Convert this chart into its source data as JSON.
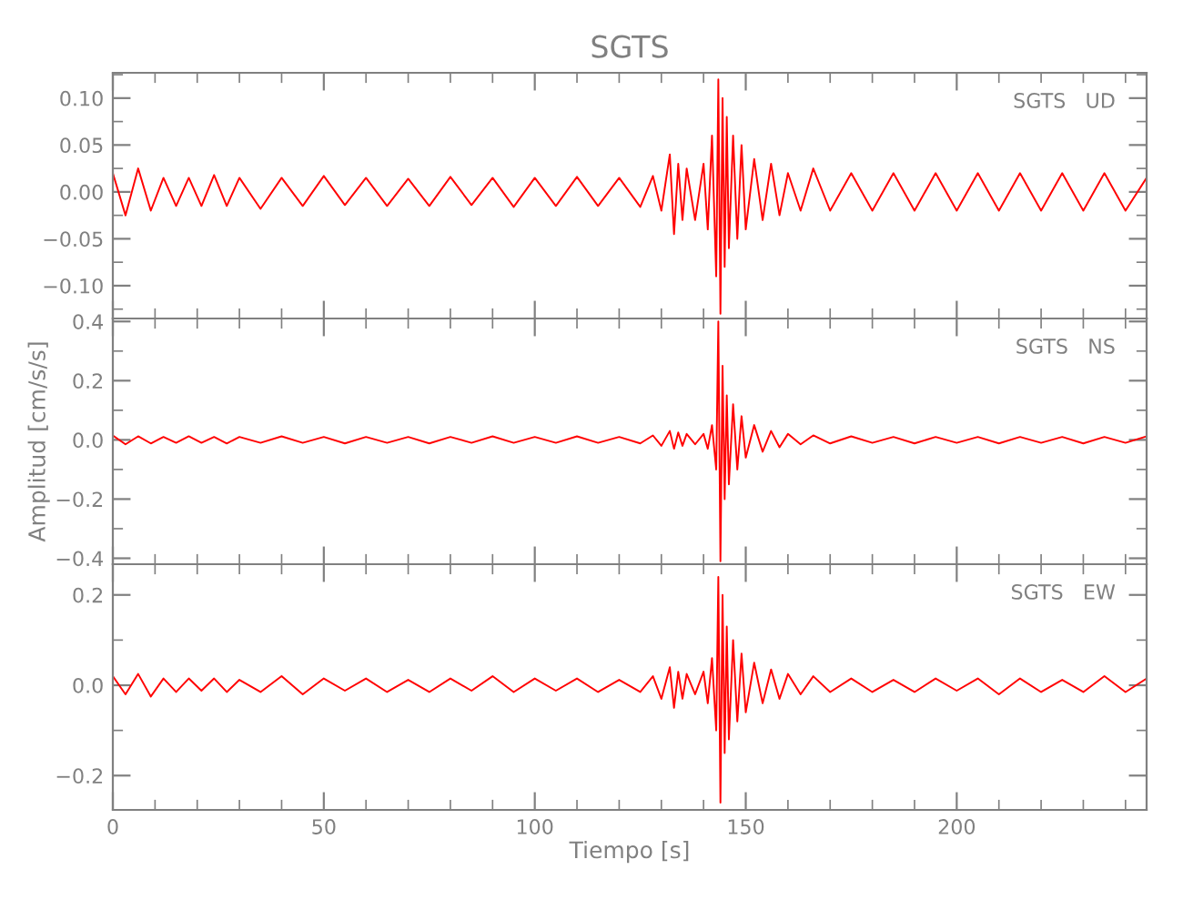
{
  "chart_data": [
    {
      "type": "line",
      "title": "SGTS",
      "annotations": [
        "SGTS   UD"
      ],
      "tick_labels": "y",
      "grid": false,
      "legend": false,
      "x": [
        0,
        3,
        6,
        9,
        12,
        15,
        18,
        21,
        24,
        27,
        30,
        35,
        40,
        45,
        50,
        55,
        60,
        65,
        70,
        75,
        80,
        85,
        90,
        95,
        100,
        105,
        110,
        115,
        120,
        125,
        128,
        130,
        132,
        133,
        134,
        135,
        136,
        138,
        140,
        141,
        142,
        143,
        143.5,
        144,
        144.5,
        145,
        145.5,
        146,
        147,
        148,
        149,
        150,
        152,
        154,
        156,
        158,
        160,
        163,
        166,
        170,
        175,
        180,
        185,
        190,
        195,
        200,
        205,
        210,
        215,
        220,
        225,
        230,
        235,
        240,
        245
      ],
      "series": [
        {
          "color": "#ff0000",
          "values": [
            0.02,
            -0.025,
            0.025,
            -0.02,
            0.015,
            -0.015,
            0.015,
            -0.015,
            0.018,
            -0.015,
            0.015,
            -0.018,
            0.015,
            -0.015,
            0.017,
            -0.014,
            0.015,
            -0.015,
            0.014,
            -0.015,
            0.016,
            -0.014,
            0.015,
            -0.016,
            0.015,
            -0.015,
            0.016,
            -0.015,
            0.015,
            -0.016,
            0.017,
            -0.02,
            0.04,
            -0.045,
            0.03,
            -0.03,
            0.025,
            -0.03,
            0.03,
            -0.04,
            0.06,
            -0.09,
            0.12,
            -0.13,
            0.1,
            -0.08,
            0.08,
            -0.06,
            0.06,
            -0.05,
            0.05,
            -0.04,
            0.035,
            -0.03,
            0.03,
            -0.025,
            0.02,
            -0.02,
            0.025,
            -0.02,
            0.02,
            -0.02,
            0.02,
            -0.02,
            0.02,
            -0.02,
            0.02,
            -0.02,
            0.02,
            -0.02,
            0.02,
            -0.02,
            0.02,
            -0.02,
            0.015
          ]
        }
      ],
      "xlim": [
        0,
        245
      ],
      "xticks": [
        0,
        {
          "value": 10,
          "label": null
        },
        {
          "value": 20,
          "label": null
        },
        {
          "value": 30,
          "label": null
        },
        {
          "value": 40,
          "label": null
        },
        50,
        {
          "value": 60,
          "label": null
        },
        {
          "value": 70,
          "label": null
        },
        {
          "value": 80,
          "label": null
        },
        {
          "value": 90,
          "label": null
        },
        100,
        {
          "value": 110,
          "label": null
        },
        {
          "value": 120,
          "label": null
        },
        {
          "value": 130,
          "label": null
        },
        {
          "value": 140,
          "label": null
        },
        150,
        {
          "value": 160,
          "label": null
        },
        {
          "value": 170,
          "label": null
        },
        {
          "value": 180,
          "label": null
        },
        {
          "value": 190,
          "label": null
        },
        200,
        {
          "value": 210,
          "label": null
        },
        {
          "value": 220,
          "label": null
        },
        {
          "value": 230,
          "label": null
        },
        {
          "value": 240,
          "label": null
        }
      ],
      "ylim": [
        -0.135,
        0.127
      ],
      "yticks": [
        {
          "value": -0.125,
          "label": null
        },
        {
          "value": -0.1,
          "label": "−0.10"
        },
        {
          "value": -0.075,
          "label": null
        },
        {
          "value": -0.05,
          "label": "−0.05"
        },
        {
          "value": -0.025,
          "label": null
        },
        {
          "value": 0,
          "label": "0.00"
        },
        {
          "value": 0.025,
          "label": null
        },
        {
          "value": 0.05,
          "label": "0.05"
        },
        {
          "value": 0.075,
          "label": null
        },
        {
          "value": 0.1,
          "label": "0.10"
        },
        {
          "value": 0.125,
          "label": null
        }
      ]
    },
    {
      "type": "line",
      "ylabel": "Amplitud [cm/s/s]",
      "annotations": [
        "SGTS   NS"
      ],
      "tick_labels": "y",
      "grid": false,
      "legend": false,
      "x": [
        0,
        3,
        6,
        9,
        12,
        15,
        18,
        21,
        24,
        27,
        30,
        35,
        40,
        45,
        50,
        55,
        60,
        65,
        70,
        75,
        80,
        85,
        90,
        95,
        100,
        105,
        110,
        115,
        120,
        125,
        128,
        130,
        132,
        133,
        134,
        135,
        136,
        138,
        140,
        141,
        142,
        143,
        143.5,
        144,
        144.5,
        145,
        145.5,
        146,
        147,
        148,
        149,
        150,
        152,
        154,
        156,
        158,
        160,
        163,
        166,
        170,
        175,
        180,
        185,
        190,
        195,
        200,
        205,
        210,
        215,
        220,
        225,
        230,
        235,
        240,
        245
      ],
      "series": [
        {
          "color": "#ff0000",
          "values": [
            0.015,
            -0.015,
            0.012,
            -0.012,
            0.01,
            -0.01,
            0.012,
            -0.01,
            0.01,
            -0.012,
            0.01,
            -0.01,
            0.012,
            -0.01,
            0.01,
            -0.012,
            0.01,
            -0.01,
            0.01,
            -0.012,
            0.01,
            -0.01,
            0.012,
            -0.01,
            0.01,
            -0.01,
            0.012,
            -0.01,
            0.01,
            -0.012,
            0.015,
            -0.02,
            0.03,
            -0.03,
            0.025,
            -0.02,
            0.02,
            -0.015,
            0.02,
            -0.03,
            0.05,
            -0.1,
            0.4,
            -0.41,
            0.25,
            -0.2,
            0.15,
            -0.15,
            0.12,
            -0.1,
            0.08,
            -0.06,
            0.05,
            -0.04,
            0.03,
            -0.025,
            0.02,
            -0.015,
            0.015,
            -0.012,
            0.012,
            -0.01,
            0.01,
            -0.012,
            0.01,
            -0.01,
            0.01,
            -0.012,
            0.01,
            -0.01,
            0.01,
            -0.012,
            0.01,
            -0.01,
            0.012
          ]
        }
      ],
      "xlim": [
        0,
        245
      ],
      "xticks": [
        0,
        {
          "value": 10,
          "label": null
        },
        {
          "value": 20,
          "label": null
        },
        {
          "value": 30,
          "label": null
        },
        {
          "value": 40,
          "label": null
        },
        50,
        {
          "value": 60,
          "label": null
        },
        {
          "value": 70,
          "label": null
        },
        {
          "value": 80,
          "label": null
        },
        {
          "value": 90,
          "label": null
        },
        100,
        {
          "value": 110,
          "label": null
        },
        {
          "value": 120,
          "label": null
        },
        {
          "value": 130,
          "label": null
        },
        {
          "value": 140,
          "label": null
        },
        150,
        {
          "value": 160,
          "label": null
        },
        {
          "value": 170,
          "label": null
        },
        {
          "value": 180,
          "label": null
        },
        {
          "value": 190,
          "label": null
        },
        200,
        {
          "value": 210,
          "label": null
        },
        {
          "value": 220,
          "label": null
        },
        {
          "value": 230,
          "label": null
        },
        {
          "value": 240,
          "label": null
        }
      ],
      "ylim": [
        -0.42,
        0.41
      ],
      "yticks": [
        {
          "value": -0.4,
          "label": "−0.4"
        },
        {
          "value": -0.3,
          "label": null
        },
        {
          "value": -0.2,
          "label": "−0.2"
        },
        {
          "value": -0.1,
          "label": null
        },
        {
          "value": 0,
          "label": "0.0"
        },
        {
          "value": 0.1,
          "label": null
        },
        {
          "value": 0.2,
          "label": "0.2"
        },
        {
          "value": 0.3,
          "label": null
        },
        {
          "value": 0.4,
          "label": "0.4"
        }
      ]
    },
    {
      "type": "line",
      "xlabel": "Tiempo [s]",
      "annotations": [
        "SGTS   EW"
      ],
      "grid": false,
      "legend": false,
      "x": [
        0,
        3,
        6,
        9,
        12,
        15,
        18,
        21,
        24,
        27,
        30,
        35,
        40,
        45,
        50,
        55,
        60,
        65,
        70,
        75,
        80,
        85,
        90,
        95,
        100,
        105,
        110,
        115,
        120,
        125,
        128,
        130,
        132,
        133,
        134,
        135,
        136,
        138,
        140,
        141,
        142,
        143,
        143.5,
        144,
        144.5,
        145,
        145.5,
        146,
        147,
        148,
        149,
        150,
        152,
        154,
        156,
        158,
        160,
        163,
        166,
        170,
        175,
        180,
        185,
        190,
        195,
        200,
        205,
        210,
        215,
        220,
        225,
        230,
        235,
        240,
        245
      ],
      "series": [
        {
          "color": "#ff0000",
          "values": [
            0.02,
            -0.02,
            0.025,
            -0.025,
            0.015,
            -0.015,
            0.015,
            -0.012,
            0.015,
            -0.015,
            0.012,
            -0.015,
            0.02,
            -0.02,
            0.015,
            -0.012,
            0.015,
            -0.015,
            0.012,
            -0.015,
            0.015,
            -0.012,
            0.02,
            -0.015,
            0.015,
            -0.012,
            0.015,
            -0.015,
            0.012,
            -0.015,
            0.02,
            -0.03,
            0.04,
            -0.05,
            0.03,
            -0.03,
            0.025,
            -0.02,
            0.03,
            -0.04,
            0.06,
            -0.1,
            0.24,
            -0.26,
            0.2,
            -0.15,
            0.13,
            -0.12,
            0.1,
            -0.08,
            0.07,
            -0.06,
            0.05,
            -0.04,
            0.035,
            -0.03,
            0.025,
            -0.02,
            0.02,
            -0.015,
            0.015,
            -0.015,
            0.012,
            -0.015,
            0.015,
            -0.012,
            0.015,
            -0.02,
            0.015,
            -0.015,
            0.012,
            -0.015,
            0.02,
            -0.015,
            0.015
          ]
        }
      ],
      "xlim": [
        0,
        245
      ],
      "xticks": [
        0,
        {
          "value": 10,
          "label": null
        },
        {
          "value": 20,
          "label": null
        },
        {
          "value": 30,
          "label": null
        },
        {
          "value": 40,
          "label": null
        },
        50,
        {
          "value": 60,
          "label": null
        },
        {
          "value": 70,
          "label": null
        },
        {
          "value": 80,
          "label": null
        },
        {
          "value": 90,
          "label": null
        },
        100,
        {
          "value": 110,
          "label": null
        },
        {
          "value": 120,
          "label": null
        },
        {
          "value": 130,
          "label": null
        },
        {
          "value": 140,
          "label": null
        },
        150,
        {
          "value": 160,
          "label": null
        },
        {
          "value": 170,
          "label": null
        },
        {
          "value": 180,
          "label": null
        },
        {
          "value": 190,
          "label": null
        },
        200,
        {
          "value": 210,
          "label": null
        },
        {
          "value": 220,
          "label": null
        },
        {
          "value": 230,
          "label": null
        },
        {
          "value": 240,
          "label": null
        }
      ],
      "ylim": [
        -0.276,
        0.268
      ],
      "yticks": [
        {
          "value": -0.2,
          "label": "−0.2"
        },
        {
          "value": -0.1,
          "label": null
        },
        {
          "value": 0,
          "label": "0.0"
        },
        {
          "value": 0.1,
          "label": null
        },
        {
          "value": 0.2,
          "label": "0.2"
        }
      ]
    }
  ]
}
